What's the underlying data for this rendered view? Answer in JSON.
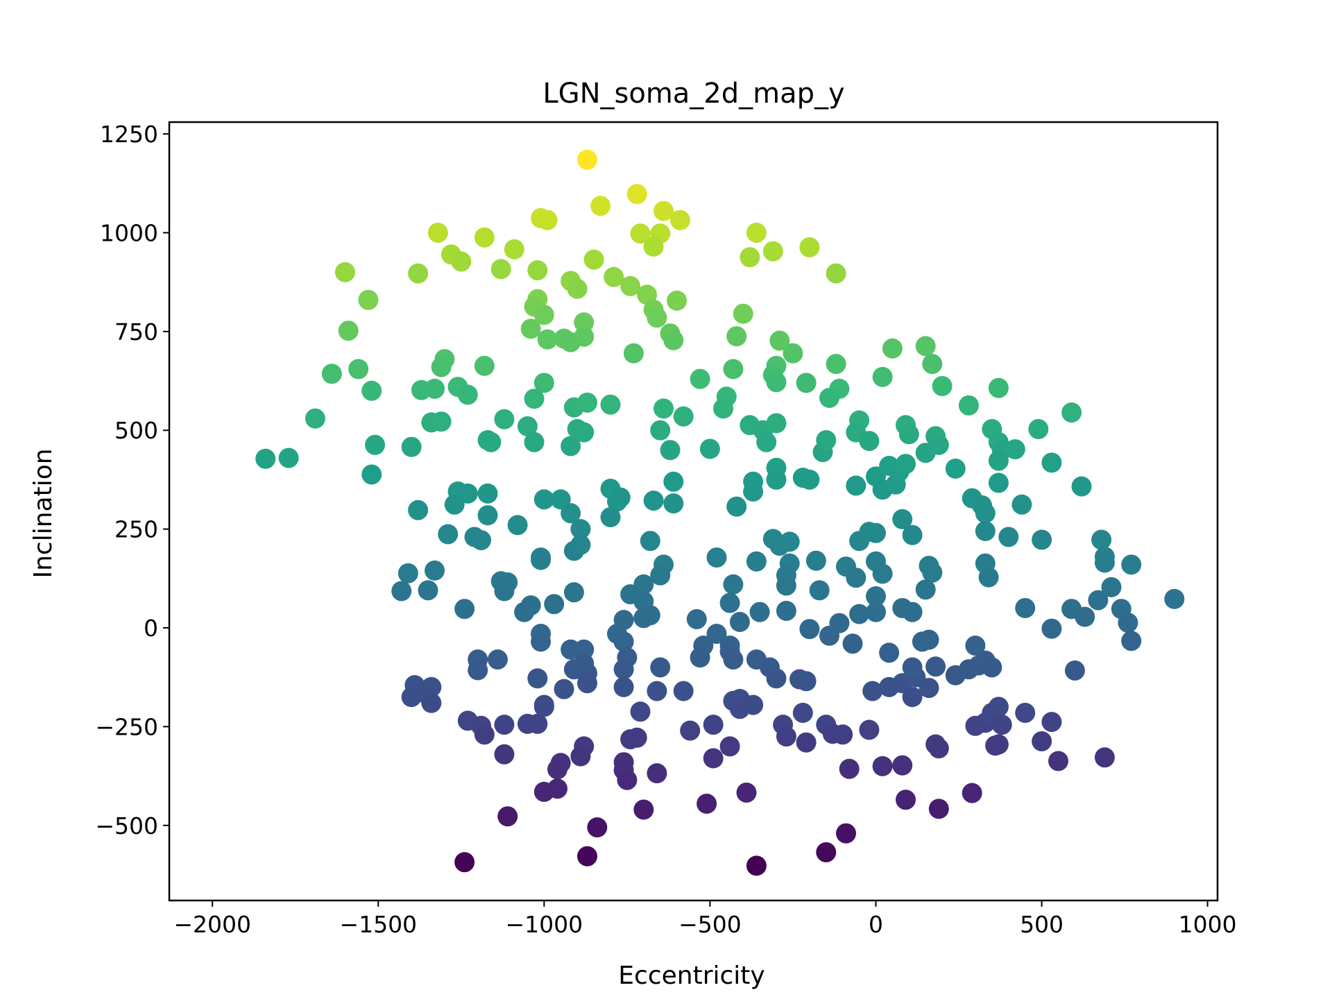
{
  "chart_data": {
    "type": "scatter",
    "title": "LGN_soma_2d_map_y",
    "xlabel": "Eccentricity",
    "ylabel": "Inclination",
    "xlim": [
      -2130,
      1030
    ],
    "ylim": [
      -690,
      1280
    ],
    "xticks": [
      -2000,
      -1500,
      -1000,
      -500,
      0,
      500,
      1000
    ],
    "yticks": [
      -500,
      -250,
      0,
      250,
      500,
      750,
      1000,
      1250
    ],
    "grid": false,
    "legend": "none",
    "colormap": "viridis",
    "color_by": "y",
    "points": [
      [
        -870,
        1185
      ],
      [
        -720,
        1098
      ],
      [
        -830,
        1068
      ],
      [
        -640,
        1055
      ],
      [
        -590,
        1032
      ],
      [
        -990,
        1032
      ],
      [
        -1010,
        1037
      ],
      [
        -710,
        998
      ],
      [
        -650,
        998
      ],
      [
        -670,
        965
      ],
      [
        -1320,
        1000
      ],
      [
        -1180,
        988
      ],
      [
        -1090,
        958
      ],
      [
        -360,
        1000
      ],
      [
        -200,
        963
      ],
      [
        -380,
        938
      ],
      [
        -310,
        953
      ],
      [
        -1280,
        945
      ],
      [
        -1250,
        927
      ],
      [
        -850,
        932
      ],
      [
        -1130,
        908
      ],
      [
        -1600,
        900
      ],
      [
        -1380,
        897
      ],
      [
        -120,
        897
      ],
      [
        -1530,
        830
      ],
      [
        -1020,
        905
      ],
      [
        -790,
        888
      ],
      [
        -920,
        878
      ],
      [
        -740,
        865
      ],
      [
        -900,
        858
      ],
      [
        -690,
        843
      ],
      [
        -1020,
        832
      ],
      [
        -1030,
        813
      ],
      [
        -670,
        805
      ],
      [
        -660,
        785
      ],
      [
        -1000,
        792
      ],
      [
        -600,
        828
      ],
      [
        -880,
        773
      ],
      [
        -1590,
        752
      ],
      [
        -1040,
        757
      ],
      [
        -620,
        745
      ],
      [
        -610,
        728
      ],
      [
        -990,
        730
      ],
      [
        -940,
        732
      ],
      [
        -920,
        723
      ],
      [
        -880,
        737
      ],
      [
        -420,
        738
      ],
      [
        -400,
        795
      ],
      [
        -730,
        695
      ],
      [
        -290,
        727
      ],
      [
        -250,
        695
      ],
      [
        150,
        713
      ],
      [
        50,
        707
      ],
      [
        -1300,
        680
      ],
      [
        -1310,
        660
      ],
      [
        -1180,
        663
      ],
      [
        -1560,
        655
      ],
      [
        -1640,
        643
      ],
      [
        -300,
        663
      ],
      [
        -310,
        640
      ],
      [
        -300,
        622
      ],
      [
        -120,
        668
      ],
      [
        -430,
        655
      ],
      [
        -530,
        630
      ],
      [
        -1000,
        620
      ],
      [
        -210,
        620
      ],
      [
        -110,
        605
      ],
      [
        -1520,
        600
      ],
      [
        -1370,
        602
      ],
      [
        -1330,
        605
      ],
      [
        -1260,
        610
      ],
      [
        -1230,
        590
      ],
      [
        170,
        668
      ],
      [
        200,
        612
      ],
      [
        20,
        635
      ],
      [
        370,
        607
      ],
      [
        -1030,
        580
      ],
      [
        -910,
        558
      ],
      [
        -870,
        570
      ],
      [
        -800,
        565
      ],
      [
        -640,
        555
      ],
      [
        -140,
        582
      ],
      [
        -450,
        585
      ],
      [
        -460,
        555
      ],
      [
        -1690,
        530
      ],
      [
        -1120,
        528
      ],
      [
        -1340,
        520
      ],
      [
        -1310,
        522
      ],
      [
        -1050,
        510
      ],
      [
        -1030,
        470
      ],
      [
        -1170,
        475
      ],
      [
        -1160,
        470
      ],
      [
        -580,
        535
      ],
      [
        -650,
        500
      ],
      [
        -900,
        503
      ],
      [
        -880,
        495
      ],
      [
        -920,
        460
      ],
      [
        -500,
        453
      ],
      [
        -380,
        513
      ],
      [
        -340,
        500
      ],
      [
        -300,
        518
      ],
      [
        -330,
        470
      ],
      [
        -160,
        445
      ],
      [
        -150,
        475
      ],
      [
        -50,
        525
      ],
      [
        -60,
        495
      ],
      [
        -20,
        473
      ],
      [
        90,
        513
      ],
      [
        100,
        490
      ],
      [
        150,
        443
      ],
      [
        180,
        485
      ],
      [
        190,
        463
      ],
      [
        280,
        563
      ],
      [
        350,
        503
      ],
      [
        370,
        470
      ],
      [
        380,
        450
      ],
      [
        370,
        423
      ],
      [
        420,
        452
      ],
      [
        490,
        503
      ],
      [
        530,
        418
      ],
      [
        590,
        545
      ],
      [
        -1510,
        463
      ],
      [
        -1400,
        458
      ],
      [
        -1840,
        428
      ],
      [
        -1770,
        430
      ],
      [
        -1520,
        388
      ],
      [
        -620,
        450
      ],
      [
        -300,
        405
      ],
      [
        -300,
        375
      ],
      [
        -220,
        380
      ],
      [
        -200,
        375
      ],
      [
        -60,
        360
      ],
      [
        0,
        383
      ],
      [
        20,
        350
      ],
      [
        40,
        410
      ],
      [
        60,
        363
      ],
      [
        70,
        395
      ],
      [
        90,
        415
      ],
      [
        240,
        403
      ],
      [
        290,
        328
      ],
      [
        320,
        310
      ],
      [
        330,
        290
      ],
      [
        330,
        245
      ],
      [
        370,
        367
      ],
      [
        400,
        230
      ],
      [
        440,
        312
      ],
      [
        500,
        223
      ],
      [
        620,
        358
      ],
      [
        -1260,
        345
      ],
      [
        -1230,
        340
      ],
      [
        -1270,
        312
      ],
      [
        -1170,
        340
      ],
      [
        -1170,
        285
      ],
      [
        -1000,
        325
      ],
      [
        -950,
        325
      ],
      [
        -920,
        290
      ],
      [
        -890,
        250
      ],
      [
        -800,
        352
      ],
      [
        -780,
        320
      ],
      [
        -770,
        330
      ],
      [
        -800,
        280
      ],
      [
        -670,
        322
      ],
      [
        -610,
        370
      ],
      [
        -610,
        315
      ],
      [
        -420,
        307
      ],
      [
        -370,
        370
      ],
      [
        -370,
        345
      ],
      [
        -1380,
        298
      ],
      [
        -1290,
        237
      ],
      [
        -1080,
        260
      ],
      [
        -1210,
        230
      ],
      [
        -1190,
        222
      ],
      [
        -1010,
        178
      ],
      [
        -1010,
        172
      ],
      [
        -910,
        195
      ],
      [
        -890,
        210
      ],
      [
        -680,
        220
      ],
      [
        -480,
        178
      ],
      [
        -360,
        168
      ],
      [
        -310,
        225
      ],
      [
        -290,
        208
      ],
      [
        -260,
        218
      ],
      [
        -260,
        163
      ],
      [
        -270,
        133
      ],
      [
        -180,
        170
      ],
      [
        -90,
        155
      ],
      [
        -50,
        220
      ],
      [
        -20,
        243
      ],
      [
        0,
        240
      ],
      [
        0,
        168
      ],
      [
        20,
        137
      ],
      [
        80,
        275
      ],
      [
        110,
        235
      ],
      [
        160,
        157
      ],
      [
        170,
        140
      ],
      [
        150,
        97
      ],
      [
        -1410,
        138
      ],
      [
        -1330,
        145
      ],
      [
        -1130,
        118
      ],
      [
        -1110,
        115
      ],
      [
        -1120,
        93
      ],
      [
        -1430,
        93
      ],
      [
        -1350,
        95
      ],
      [
        -910,
        90
      ],
      [
        -640,
        160
      ],
      [
        -650,
        133
      ],
      [
        -700,
        110
      ],
      [
        -740,
        85
      ],
      [
        -700,
        67
      ],
      [
        -430,
        110
      ],
      [
        -410,
        15
      ],
      [
        -440,
        63
      ],
      [
        -350,
        40
      ],
      [
        -270,
        107
      ],
      [
        -270,
        43
      ],
      [
        -170,
        95
      ],
      [
        -60,
        127
      ],
      [
        -50,
        35
      ],
      [
        0,
        80
      ],
      [
        0,
        40
      ],
      [
        80,
        50
      ],
      [
        110,
        40
      ],
      [
        -1240,
        48
      ],
      [
        -1040,
        57
      ],
      [
        -970,
        60
      ],
      [
        -1060,
        40
      ],
      [
        -1010,
        -15
      ],
      [
        -1010,
        -35
      ],
      [
        -760,
        20
      ],
      [
        -700,
        25
      ],
      [
        -680,
        32
      ],
      [
        -540,
        22
      ],
      [
        -480,
        -15
      ],
      [
        -440,
        -45
      ],
      [
        -200,
        -3
      ],
      [
        -140,
        -20
      ],
      [
        -70,
        -40
      ],
      [
        -110,
        12
      ],
      [
        40,
        -63
      ],
      [
        140,
        -35
      ],
      [
        160,
        -30
      ],
      [
        330,
        163
      ],
      [
        340,
        128
      ],
      [
        680,
        223
      ],
      [
        690,
        180
      ],
      [
        690,
        165
      ],
      [
        710,
        103
      ],
      [
        670,
        70
      ],
      [
        590,
        48
      ],
      [
        630,
        28
      ],
      [
        450,
        50
      ],
      [
        530,
        -2
      ],
      [
        740,
        48
      ],
      [
        760,
        13
      ],
      [
        770,
        160
      ],
      [
        770,
        -33
      ],
      [
        900,
        73
      ],
      [
        -920,
        -55
      ],
      [
        -880,
        -55
      ],
      [
        -880,
        -90
      ],
      [
        -780,
        -15
      ],
      [
        -760,
        -35
      ],
      [
        -750,
        -75
      ],
      [
        -760,
        -105
      ],
      [
        -520,
        -45
      ],
      [
        -530,
        -75
      ],
      [
        -440,
        -60
      ],
      [
        -430,
        -80
      ],
      [
        -360,
        -80
      ],
      [
        -320,
        -100
      ],
      [
        -300,
        -128
      ],
      [
        -230,
        -130
      ],
      [
        -210,
        -135
      ],
      [
        -1200,
        -80
      ],
      [
        -1200,
        -107
      ],
      [
        -1140,
        -80
      ],
      [
        -910,
        -105
      ],
      [
        -880,
        -102
      ],
      [
        -870,
        -115
      ],
      [
        -870,
        -140
      ],
      [
        -940,
        -155
      ],
      [
        -1020,
        -128
      ],
      [
        -760,
        -150
      ],
      [
        -650,
        -100
      ],
      [
        -1390,
        -145
      ],
      [
        -1400,
        -175
      ],
      [
        -1340,
        -150
      ],
      [
        -1360,
        -165
      ],
      [
        -1340,
        -190
      ],
      [
        -1000,
        -195
      ],
      [
        -1000,
        -200
      ],
      [
        -660,
        -160
      ],
      [
        -580,
        -160
      ],
      [
        -430,
        -185
      ],
      [
        -410,
        -180
      ],
      [
        -410,
        -205
      ],
      [
        -370,
        -195
      ],
      [
        -220,
        -215
      ],
      [
        -150,
        -245
      ],
      [
        -130,
        -268
      ],
      [
        -100,
        -270
      ],
      [
        -280,
        -245
      ],
      [
        -270,
        -275
      ],
      [
        -210,
        -290
      ],
      [
        -20,
        -258
      ],
      [
        -10,
        -160
      ],
      [
        40,
        -150
      ],
      [
        80,
        -140
      ],
      [
        110,
        -175
      ],
      [
        120,
        -125
      ],
      [
        110,
        -100
      ],
      [
        160,
        -152
      ],
      [
        180,
        -98
      ],
      [
        240,
        -120
      ],
      [
        280,
        -105
      ],
      [
        300,
        -45
      ],
      [
        310,
        -95
      ],
      [
        330,
        -83
      ],
      [
        350,
        -100
      ],
      [
        300,
        -248
      ],
      [
        330,
        -240
      ],
      [
        350,
        -215
      ],
      [
        370,
        -200
      ],
      [
        380,
        -245
      ],
      [
        370,
        -295
      ],
      [
        360,
        -298
      ],
      [
        450,
        -215
      ],
      [
        500,
        -287
      ],
      [
        530,
        -238
      ],
      [
        550,
        -337
      ],
      [
        600,
        -108
      ],
      [
        690,
        -328
      ],
      [
        180,
        -295
      ],
      [
        190,
        -305
      ],
      [
        -1230,
        -235
      ],
      [
        -1190,
        -248
      ],
      [
        -1120,
        -245
      ],
      [
        -1180,
        -270
      ],
      [
        -1050,
        -243
      ],
      [
        -1020,
        -243
      ],
      [
        -1120,
        -320
      ],
      [
        -880,
        -300
      ],
      [
        -890,
        -325
      ],
      [
        -950,
        -342
      ],
      [
        -960,
        -358
      ],
      [
        -720,
        -278
      ],
      [
        -740,
        -282
      ],
      [
        -760,
        -340
      ],
      [
        -760,
        -360
      ],
      [
        -750,
        -385
      ],
      [
        -660,
        -368
      ],
      [
        -710,
        -212
      ],
      [
        -560,
        -260
      ],
      [
        -490,
        -245
      ],
      [
        -440,
        -300
      ],
      [
        -490,
        -330
      ],
      [
        -80,
        -357
      ],
      [
        20,
        -350
      ],
      [
        80,
        -348
      ],
      [
        -960,
        -407
      ],
      [
        -1000,
        -415
      ],
      [
        -700,
        -460
      ],
      [
        -510,
        -445
      ],
      [
        -390,
        -417
      ],
      [
        90,
        -435
      ],
      [
        190,
        -458
      ],
      [
        290,
        -418
      ],
      [
        -1110,
        -477
      ],
      [
        -840,
        -505
      ],
      [
        -90,
        -520
      ],
      [
        -150,
        -568
      ],
      [
        -870,
        -578
      ],
      [
        -1240,
        -593
      ],
      [
        -360,
        -602
      ]
    ]
  }
}
